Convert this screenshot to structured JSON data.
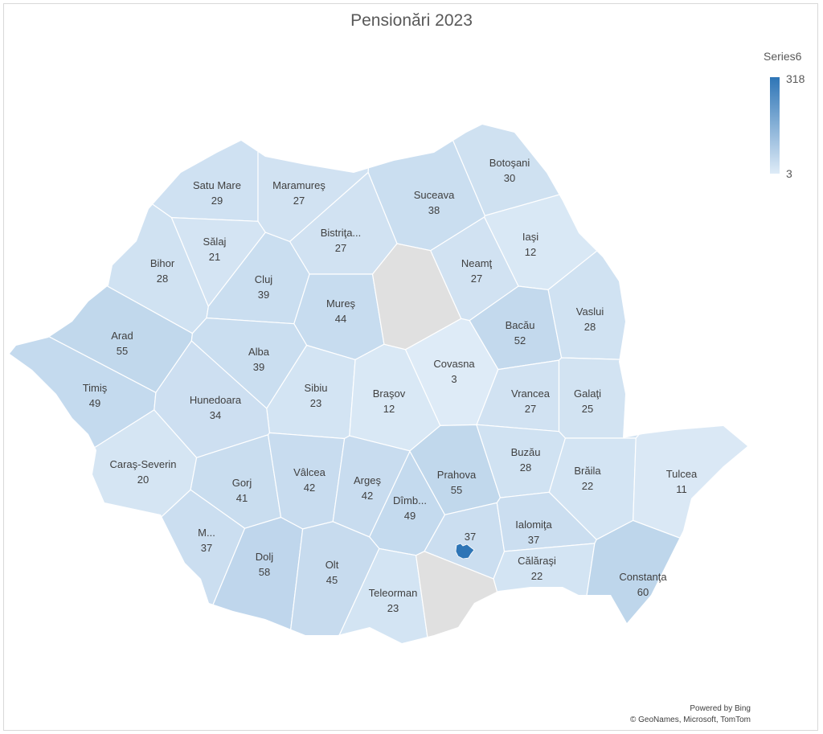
{
  "title": "Pensionări 2023",
  "legend": {
    "title": "Series6",
    "max": "318",
    "min": "3",
    "color_max": "#2e75b6",
    "color_min": "#deebf7"
  },
  "no_data_color": "#e0e0e0",
  "highlight_region_value": 318,
  "counties": [
    {
      "name": "Satu Mare",
      "value": 29
    },
    {
      "name": "Maramureş",
      "value": 27
    },
    {
      "name": "Botoşani",
      "value": 30
    },
    {
      "name": "Suceava",
      "value": 38
    },
    {
      "name": "Bihor",
      "value": 28
    },
    {
      "name": "Sălaj",
      "value": 21
    },
    {
      "name": "Bistriţa...",
      "value": 27
    },
    {
      "name": "Iaşi",
      "value": 12
    },
    {
      "name": "Neamţ",
      "value": 27
    },
    {
      "name": "Cluj",
      "value": 39
    },
    {
      "name": "Mureş",
      "value": 44
    },
    {
      "name": "Bacău",
      "value": 52
    },
    {
      "name": "Vaslui",
      "value": 28
    },
    {
      "name": "Arad",
      "value": 55
    },
    {
      "name": "Alba",
      "value": 39
    },
    {
      "name": "Sibiu",
      "value": 23
    },
    {
      "name": "Braşov",
      "value": 12
    },
    {
      "name": "Covasna",
      "value": 3
    },
    {
      "name": "Vrancea",
      "value": 27
    },
    {
      "name": "Galaţi",
      "value": 25
    },
    {
      "name": "Timiş",
      "value": 49
    },
    {
      "name": "Hunedoara",
      "value": 34
    },
    {
      "name": "Caraş-Severin",
      "value": 20
    },
    {
      "name": "Gorj",
      "value": 41
    },
    {
      "name": "Vâlcea",
      "value": 42
    },
    {
      "name": "Argeş",
      "value": 42
    },
    {
      "name": "Dîmb...",
      "value": 49
    },
    {
      "name": "Prahova",
      "value": 55
    },
    {
      "name": "Buzău",
      "value": 28
    },
    {
      "name": "Brăila",
      "value": 22
    },
    {
      "name": "Tulcea",
      "value": 11
    },
    {
      "name": "M...",
      "value": 37
    },
    {
      "name": "Dolj",
      "value": 58
    },
    {
      "name": "Olt",
      "value": 45
    },
    {
      "name": "Teleorman",
      "value": 23
    },
    {
      "name": "",
      "value": 37
    },
    {
      "name": "Ialomiţa",
      "value": 37
    },
    {
      "name": "Călăraşi",
      "value": 22
    },
    {
      "name": "Constanţa",
      "value": 60
    }
  ],
  "footer": {
    "powered": "Powered by Bing",
    "copyright": "© GeoNames, Microsoft, TomTom"
  }
}
